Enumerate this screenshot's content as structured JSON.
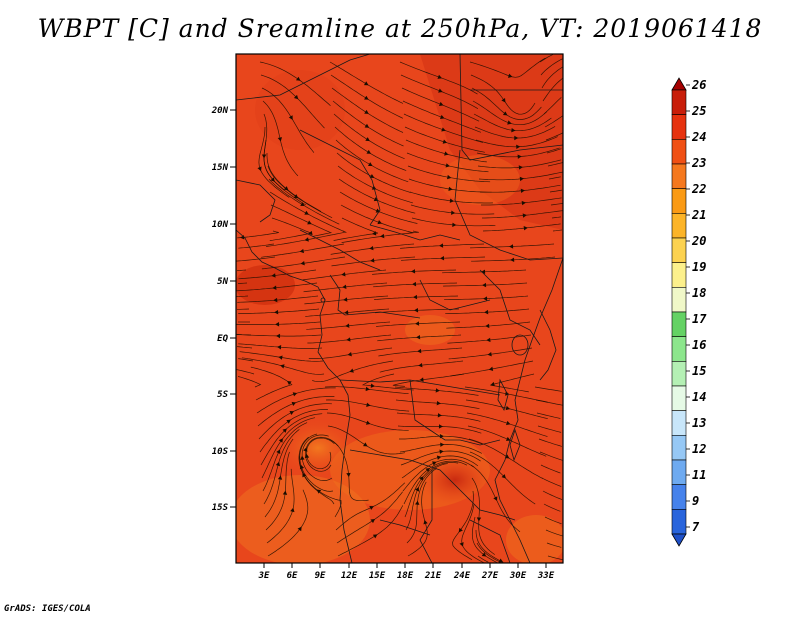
{
  "title": "WBPT [C] and Sreamline at 250hPa, VT: 2019061418",
  "credit": "GrADS: IGES/COLA",
  "colors": {
    "background_field": "#e8461c",
    "warm_field": "#d83414",
    "cool_field": "#f07018",
    "streamline": "#1a0d00",
    "coastline": "#1a1a1a"
  },
  "map": {
    "lat_ticks": [
      "20N",
      "15N",
      "10N",
      "5N",
      "EQ",
      "5S",
      "10S",
      "15S"
    ],
    "lon_ticks": [
      "3E",
      "6E",
      "9E",
      "12E",
      "15E",
      "18E",
      "21E",
      "24E",
      "27E",
      "30E",
      "33E"
    ]
  },
  "legend": {
    "levels": [
      "26",
      "25",
      "24",
      "23",
      "22",
      "21",
      "20",
      "19",
      "18",
      "17",
      "16",
      "15",
      "14",
      "13",
      "12",
      "11",
      "9",
      "7"
    ],
    "colors": [
      "#a50000",
      "#c81e0a",
      "#e6320f",
      "#f05014",
      "#f5781e",
      "#fa9a14",
      "#fcb428",
      "#fcd250",
      "#fcf08c",
      "#f0f8c8",
      "#64d264",
      "#8ce68c",
      "#b4f0b4",
      "#e6fae6",
      "#c8e6fa",
      "#96c8f5",
      "#6eaaf0",
      "#4682eb",
      "#2864dc",
      "#1e50c8"
    ]
  }
}
